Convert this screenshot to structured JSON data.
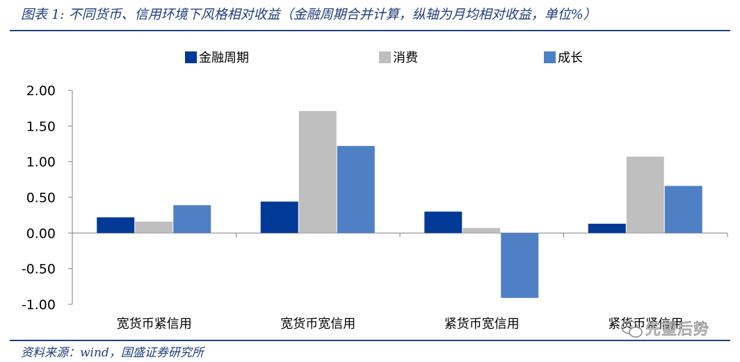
{
  "figure": {
    "title": "图表 1:  不同货币、信用环境下风格相对收益（金融周期合并计算，纵轴为月均相对收益，单位%）",
    "source": "资料来源：wind，国盛证券研究所",
    "watermark": "先望后势"
  },
  "chart_data": {
    "type": "bar",
    "categories": [
      "宽货币紧信用",
      "宽货币宽信用",
      "紧货币宽信用",
      "紧货币紧信用"
    ],
    "series": [
      {
        "name": "金融周期",
        "values": [
          0.22,
          0.44,
          0.3,
          0.13
        ]
      },
      {
        "name": "消费",
        "values": [
          0.16,
          1.71,
          0.07,
          1.07
        ]
      },
      {
        "name": "成长",
        "values": [
          0.39,
          1.22,
          -0.91,
          0.66
        ]
      }
    ],
    "ylim": [
      -1.0,
      2.0
    ],
    "yticks": [
      "2.00",
      "1.50",
      "1.00",
      "0.50",
      "0.00",
      "-0.50",
      "-1.00"
    ],
    "xlabel": "",
    "ylabel": "",
    "legend_position": "top-center",
    "grid": false,
    "colors": [
      "#003a96",
      "#bfbfbf",
      "#4f80c6"
    ]
  }
}
